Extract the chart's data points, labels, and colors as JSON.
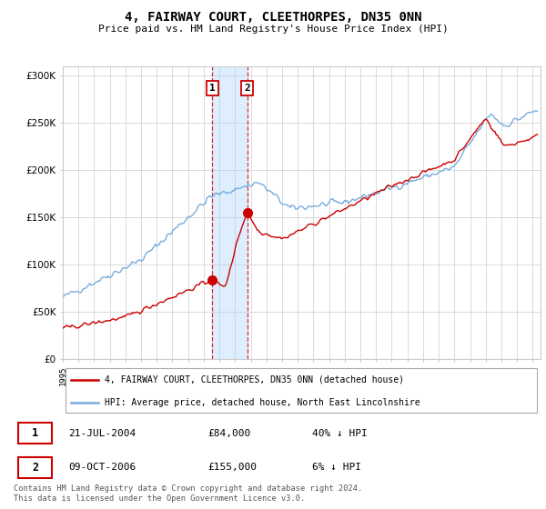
{
  "title": "4, FAIRWAY COURT, CLEETHORPES, DN35 0NN",
  "subtitle": "Price paid vs. HM Land Registry's House Price Index (HPI)",
  "legend_label_red": "4, FAIRWAY COURT, CLEETHORPES, DN35 0NN (detached house)",
  "legend_label_blue": "HPI: Average price, detached house, North East Lincolnshire",
  "transaction1_label": "1",
  "transaction1_date": "21-JUL-2004",
  "transaction1_price": "£84,000",
  "transaction1_hpi": "40% ↓ HPI",
  "transaction2_label": "2",
  "transaction2_date": "09-OCT-2006",
  "transaction2_price": "£155,000",
  "transaction2_hpi": "6% ↓ HPI",
  "footer": "Contains HM Land Registry data © Crown copyright and database right 2024.\nThis data is licensed under the Open Government Licence v3.0.",
  "ylim": [
    0,
    310000
  ],
  "yticks": [
    0,
    50000,
    100000,
    150000,
    200000,
    250000,
    300000
  ],
  "color_red": "#cc0000",
  "color_blue": "#7aacdc",
  "color_highlight": "#ddeeff",
  "transaction1_x": 2004.55,
  "transaction1_y": 84000,
  "transaction2_x": 2006.77,
  "transaction2_y": 155000,
  "xmin": 1995.0,
  "xmax": 2025.5
}
